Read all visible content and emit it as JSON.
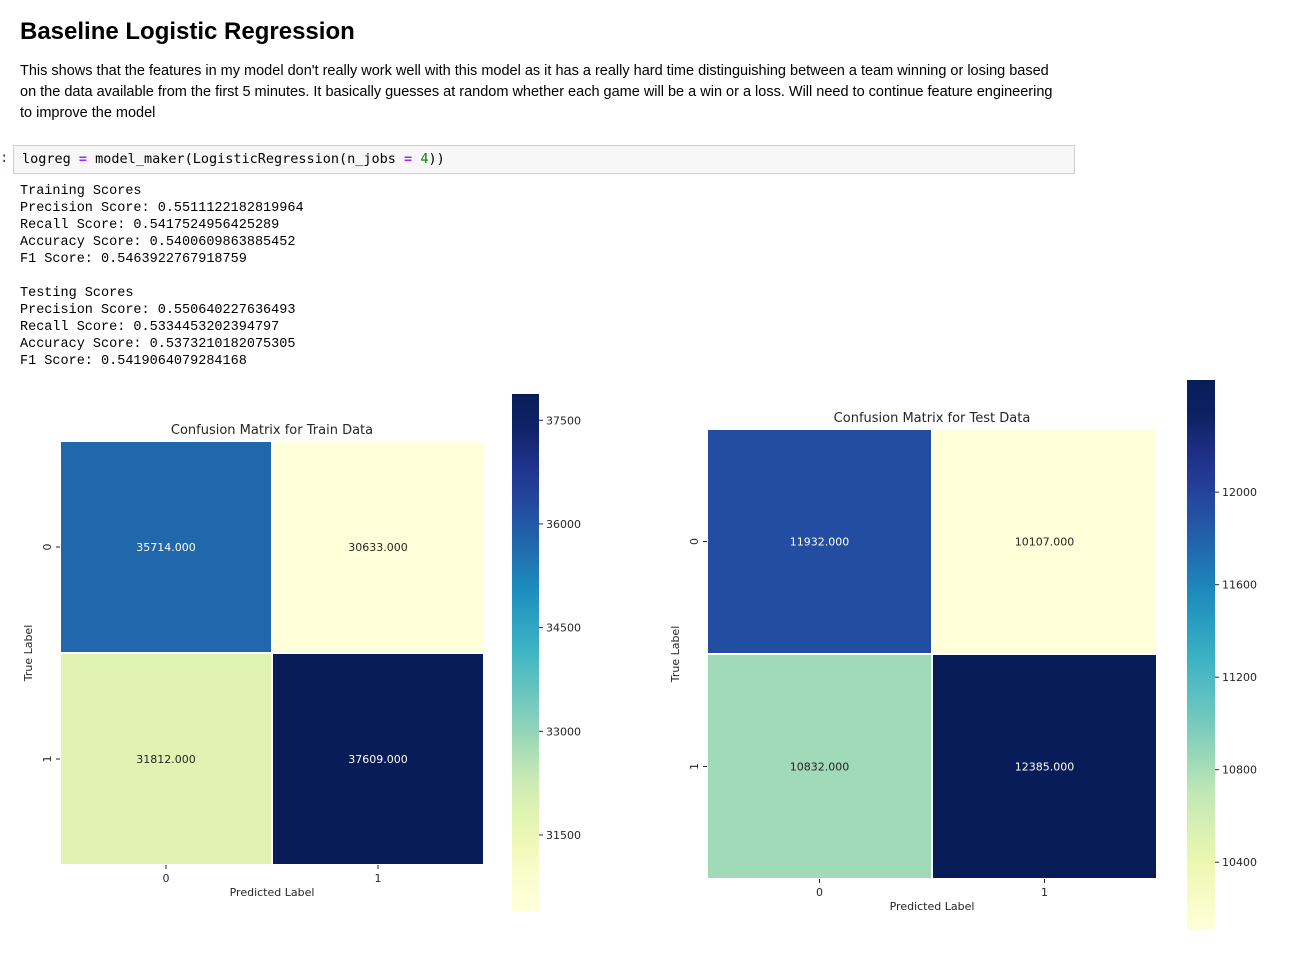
{
  "markdown": {
    "heading": "Baseline Logistic Regression",
    "description": "This shows that the features in my model don't really work well with this model as it has a really hard time distinguishing between a team winning or losing based on the data available from the first 5 minutes. It basically guesses at random whether each game will be a win or a loss. Will need to continue feature engineering to improve the model"
  },
  "code_cell": {
    "prompt": ":",
    "tokens": {
      "var": "logreg ",
      "op1": "=",
      "mid": " model_maker(LogisticRegression(n_jobs ",
      "op2": "=",
      "space": " ",
      "num": "4",
      "end": "))"
    }
  },
  "output": {
    "lines": [
      "Training Scores",
      "Precision Score: 0.5511122182819964",
      "Recall Score: 0.5417524956425289",
      "Accuracy Score: 0.5400609863885452",
      "F1 Score: 0.5463922767918759",
      "",
      "Testing Scores",
      "Precision Score: 0.550640227636493",
      "Recall Score: 0.5334453202394797",
      "Accuracy Score: 0.5373210182075305",
      "F1 Score: 0.5419064079284168"
    ]
  },
  "chart_data": [
    {
      "type": "heatmap",
      "title": "Confusion Matrix for Train Data",
      "xlabel": "Predicted Label",
      "ylabel": "True Label",
      "x_ticks": [
        "0",
        "1"
      ],
      "y_ticks": [
        "0",
        "1"
      ],
      "values": [
        [
          35714.0,
          30633.0
        ],
        [
          31812.0,
          37609.0
        ]
      ],
      "cell_labels": [
        [
          "35714.000",
          "30633.000"
        ],
        [
          "31812.000",
          "37609.000"
        ]
      ],
      "colorscale": "YlGnBu",
      "vmin": 30633,
      "vmax": 37609,
      "colorbar_ticks": [
        31500,
        33000,
        34500,
        36000,
        37500
      ]
    },
    {
      "type": "heatmap",
      "title": "Confusion Matrix for Test Data",
      "xlabel": "Predicted Label",
      "ylabel": "True Label",
      "x_ticks": [
        "0",
        "1"
      ],
      "y_ticks": [
        "0",
        "1"
      ],
      "values": [
        [
          11932.0,
          10107.0
        ],
        [
          10832.0,
          12385.0
        ]
      ],
      "cell_labels": [
        [
          "11932.000",
          "10107.000"
        ],
        [
          "10832.000",
          "12385.000"
        ]
      ],
      "colorscale": "YlGnBu",
      "vmin": 10107,
      "vmax": 12385,
      "colorbar_ticks": [
        10400,
        10800,
        11200,
        11600,
        12000
      ]
    }
  ]
}
